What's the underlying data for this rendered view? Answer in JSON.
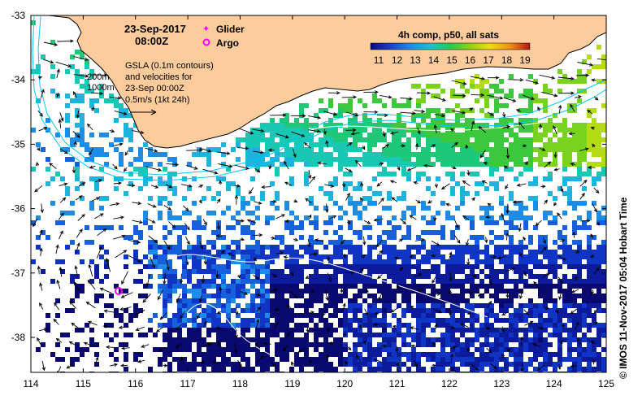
{
  "map": {
    "date": "23-Sep-2017",
    "time": "08:00Z",
    "legend_glider": "Glider",
    "legend_argo": "Argo",
    "colorbar_title": "4h comp, p50, all sats",
    "colorbar_ticks": [
      "11",
      "12",
      "13",
      "14",
      "15",
      "16",
      "17",
      "18",
      "19"
    ],
    "depth_200": "200m",
    "depth_1000": "1000m",
    "gsla_line1": "GSLA (0.1m contours)",
    "gsla_line2": "and velocities for",
    "gsla_line3": "23-Sep 00:00Z",
    "gsla_line4": "0.5m/s (1kt 24h)",
    "credit": "© IMOS 11-Nov-2017 05:04 Hobart Time",
    "lon_ticks": [
      "114",
      "115",
      "116",
      "117",
      "118",
      "119",
      "120",
      "121",
      "122",
      "123",
      "124",
      "125"
    ],
    "lat_ticks": [
      "-33",
      "-34",
      "-35",
      "-36",
      "-37",
      "-38"
    ],
    "colors": {
      "land": "#fccc9c",
      "isobath": "#00c8ff",
      "glider": "#ff00ff",
      "argo": "#ff00ff"
    }
  }
}
